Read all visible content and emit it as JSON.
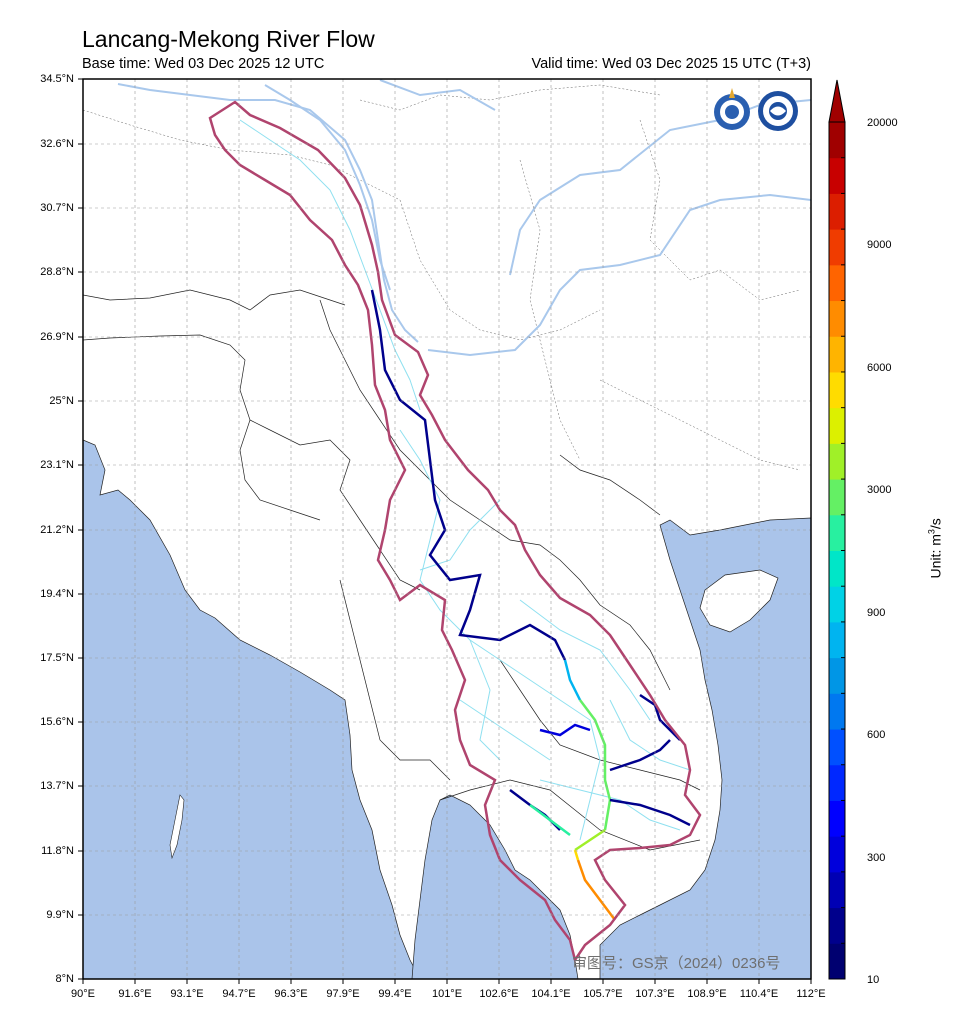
{
  "title": "Lancang-Mekong River Flow",
  "base_time": "Base time: Wed 03 Dec 2025 12 UTC",
  "valid_time": "Valid time: Wed 03 Dec 2025 15 UTC (T+3)",
  "lat_labels": [
    "34.5°N",
    "32.6°N",
    "30.7°N",
    "28.8°N",
    "26.9°N",
    "25°N",
    "23.1°N",
    "21.2°N",
    "19.4°N",
    "17.5°N",
    "15.6°N",
    "13.7°N",
    "11.8°N",
    "9.9°N",
    "8°N"
  ],
  "lon_labels": [
    "90°E",
    "91.6°E",
    "93.1°E",
    "94.7°E",
    "96.3°E",
    "97.9°E",
    "99.4°E",
    "101°E",
    "102.6°E",
    "104.1°E",
    "105.7°E",
    "107.3°E",
    "108.9°E",
    "110.4°E",
    "112°E"
  ],
  "colorbar": {
    "labels": [
      "20000",
      "9000",
      "6000",
      "3000",
      "900",
      "600",
      "300",
      "10"
    ],
    "unit_text": "Unit: m",
    "unit_sup": "3",
    "unit_tail": "/s",
    "colors": [
      "#000070",
      "#00008c",
      "#0000b4",
      "#0000dc",
      "#0000ff",
      "#0028ff",
      "#0050ff",
      "#0078f0",
      "#0096e6",
      "#00b4f0",
      "#00d2e6",
      "#00e6c8",
      "#28f0a0",
      "#64f064",
      "#a0f028",
      "#dcf000",
      "#ffdc00",
      "#ffb400",
      "#ff8c00",
      "#ff6400",
      "#f03c00",
      "#dc1e00",
      "#c80000",
      "#a00000"
    ]
  },
  "watermark": "审图号：GS京（2024）0236号",
  "map_colors": {
    "ocean": "#aac4ea",
    "land": "#ffffff",
    "basin_outline": "#b0446e",
    "rivers_major": "#a9c8ec",
    "tributaries": "#8fe0f0"
  },
  "logos": [
    "wmo-logo-icon",
    "cma-logo-icon"
  ]
}
